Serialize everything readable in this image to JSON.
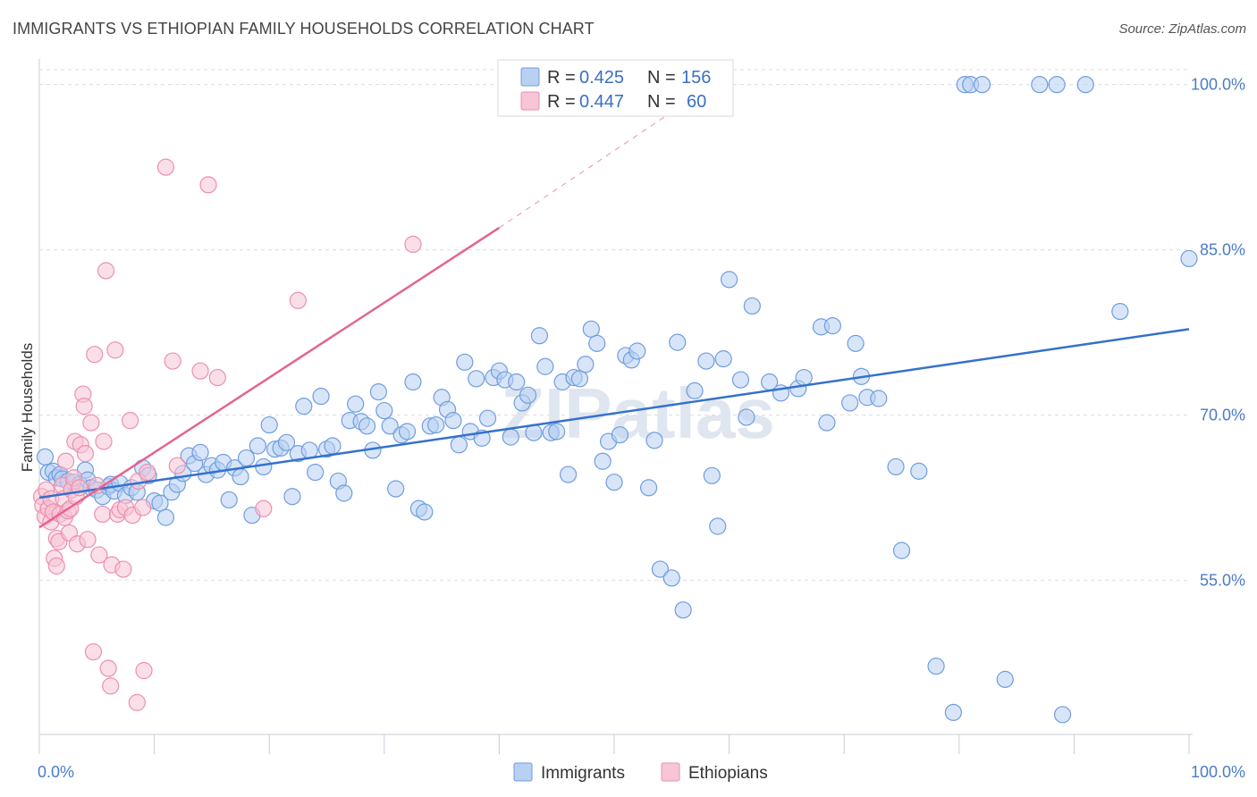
{
  "title": "IMMIGRANTS VS ETHIOPIAN FAMILY HOUSEHOLDS CORRELATION CHART",
  "source": "Source: ZipAtlas.com",
  "watermark": "ZIPatlas",
  "colors": {
    "immigrants_fill": "#b8d0f2",
    "immigrants_stroke": "#6f9ddf",
    "immigrants_line": "#3471cc",
    "ethiopians_fill": "#f7c5d5",
    "ethiopians_stroke": "#ec8fae",
    "ethiopians_line": "#e4648f",
    "grid": "#d9dde3",
    "tick_label": "#4a7cc9"
  },
  "legend": {
    "r_label": "R =",
    "n_label": "N =",
    "rows": [
      {
        "r": "0.425",
        "n": "156"
      },
      {
        "r": "0.447",
        "n": "60"
      }
    ]
  },
  "chart_data": {
    "type": "scatter",
    "title": "IMMIGRANTS VS ETHIOPIAN FAMILY HOUSEHOLDS CORRELATION CHART",
    "xlabel": "",
    "ylabel": "Family Households",
    "xlim": [
      0,
      100
    ],
    "ylim": [
      41,
      102
    ],
    "x_tick_labels": [
      "0.0%",
      "100.0%"
    ],
    "y_ticks": [
      55,
      70,
      85,
      100
    ],
    "y_tick_labels": [
      "55.0%",
      "70.0%",
      "85.0%",
      "100.0%"
    ],
    "grid": true,
    "legend_position": "top-center",
    "series": [
      {
        "name": "Immigrants",
        "trend": {
          "x": [
            0,
            100
          ],
          "y": [
            62.5,
            77.8
          ]
        },
        "points": [
          [
            0.5,
            66.2
          ],
          [
            0.8,
            64.8
          ],
          [
            1.2,
            64.9
          ],
          [
            1.5,
            64.3
          ],
          [
            1.8,
            64.6
          ],
          [
            2.0,
            64.2
          ],
          [
            2.5,
            64.0
          ],
          [
            3.0,
            63.9
          ],
          [
            3.5,
            63.7
          ],
          [
            4.0,
            65.0
          ],
          [
            4.2,
            64.1
          ],
          [
            4.5,
            63.4
          ],
          [
            5.0,
            63.2
          ],
          [
            5.5,
            62.6
          ],
          [
            6.0,
            63.5
          ],
          [
            6.2,
            63.7
          ],
          [
            6.5,
            63.1
          ],
          [
            7.0,
            63.8
          ],
          [
            7.5,
            62.7
          ],
          [
            8.0,
            63.4
          ],
          [
            8.5,
            63.0
          ],
          [
            9.0,
            65.2
          ],
          [
            9.5,
            64.5
          ],
          [
            10.0,
            62.2
          ],
          [
            10.5,
            62.0
          ],
          [
            11.0,
            60.7
          ],
          [
            11.5,
            63.0
          ],
          [
            12.0,
            63.7
          ],
          [
            12.5,
            64.7
          ],
          [
            13.0,
            66.3
          ],
          [
            13.5,
            65.6
          ],
          [
            14.0,
            66.6
          ],
          [
            14.5,
            64.6
          ],
          [
            15.0,
            65.4
          ],
          [
            15.5,
            65.0
          ],
          [
            16.0,
            65.7
          ],
          [
            16.5,
            62.3
          ],
          [
            17.0,
            65.2
          ],
          [
            17.5,
            64.4
          ],
          [
            18.0,
            66.1
          ],
          [
            18.5,
            60.9
          ],
          [
            19.0,
            67.2
          ],
          [
            19.5,
            65.3
          ],
          [
            20.0,
            69.1
          ],
          [
            20.5,
            66.9
          ],
          [
            21.0,
            67.0
          ],
          [
            21.5,
            67.5
          ],
          [
            22.0,
            62.6
          ],
          [
            22.5,
            66.5
          ],
          [
            23.0,
            70.8
          ],
          [
            23.5,
            66.8
          ],
          [
            24.0,
            64.8
          ],
          [
            24.5,
            71.7
          ],
          [
            25.0,
            66.9
          ],
          [
            25.5,
            67.2
          ],
          [
            26.0,
            64.0
          ],
          [
            26.5,
            62.9
          ],
          [
            27.0,
            69.5
          ],
          [
            27.5,
            71.0
          ],
          [
            28.0,
            69.4
          ],
          [
            28.5,
            69.0
          ],
          [
            29.0,
            66.8
          ],
          [
            29.5,
            72.1
          ],
          [
            30.0,
            70.4
          ],
          [
            30.5,
            69.0
          ],
          [
            31.0,
            63.3
          ],
          [
            31.5,
            68.2
          ],
          [
            32.0,
            68.5
          ],
          [
            32.5,
            73.0
          ],
          [
            33.0,
            61.5
          ],
          [
            33.5,
            61.2
          ],
          [
            34.0,
            69.0
          ],
          [
            34.5,
            69.1
          ],
          [
            35.0,
            71.6
          ],
          [
            35.5,
            70.5
          ],
          [
            36.0,
            69.5
          ],
          [
            36.5,
            67.3
          ],
          [
            37.0,
            74.8
          ],
          [
            37.5,
            68.5
          ],
          [
            38.0,
            73.3
          ],
          [
            38.5,
            67.9
          ],
          [
            39.0,
            69.7
          ],
          [
            39.5,
            73.4
          ],
          [
            40.0,
            74.0
          ],
          [
            40.5,
            73.2
          ],
          [
            41.0,
            68.0
          ],
          [
            41.5,
            73.0
          ],
          [
            42.0,
            71.1
          ],
          [
            42.5,
            71.8
          ],
          [
            43.0,
            68.4
          ],
          [
            43.5,
            77.2
          ],
          [
            44.0,
            74.4
          ],
          [
            44.5,
            68.4
          ],
          [
            45.0,
            68.5
          ],
          [
            45.5,
            73.0
          ],
          [
            46.0,
            64.6
          ],
          [
            46.5,
            73.4
          ],
          [
            47.0,
            73.3
          ],
          [
            47.5,
            74.6
          ],
          [
            48.0,
            77.8
          ],
          [
            48.5,
            76.5
          ],
          [
            49.0,
            65.8
          ],
          [
            49.5,
            67.6
          ],
          [
            50.0,
            63.9
          ],
          [
            50.5,
            68.2
          ],
          [
            51.0,
            75.4
          ],
          [
            51.5,
            75.0
          ],
          [
            52.0,
            75.8
          ],
          [
            53.0,
            63.4
          ],
          [
            53.5,
            67.7
          ],
          [
            54.0,
            56.0
          ],
          [
            55.0,
            55.2
          ],
          [
            55.5,
            76.6
          ],
          [
            56.0,
            52.3
          ],
          [
            57.0,
            72.2
          ],
          [
            58.0,
            74.9
          ],
          [
            58.5,
            64.5
          ],
          [
            59.0,
            59.9
          ],
          [
            59.5,
            75.1
          ],
          [
            60.0,
            82.3
          ],
          [
            61.0,
            73.2
          ],
          [
            61.5,
            69.8
          ],
          [
            62.0,
            79.9
          ],
          [
            63.5,
            73.0
          ],
          [
            64.5,
            72.0
          ],
          [
            66.0,
            72.4
          ],
          [
            66.5,
            73.4
          ],
          [
            68.0,
            78.0
          ],
          [
            68.5,
            69.3
          ],
          [
            69.0,
            78.1
          ],
          [
            70.5,
            71.1
          ],
          [
            71.0,
            76.5
          ],
          [
            71.5,
            73.5
          ],
          [
            72.0,
            71.6
          ],
          [
            73.0,
            71.5
          ],
          [
            74.5,
            65.3
          ],
          [
            75.0,
            57.7
          ],
          [
            76.5,
            64.9
          ],
          [
            78.0,
            47.2
          ],
          [
            79.5,
            43.0
          ],
          [
            80.5,
            100.0
          ],
          [
            81.0,
            100.0
          ],
          [
            82.0,
            100.0
          ],
          [
            84.0,
            46.0
          ],
          [
            87.0,
            100.0
          ],
          [
            88.5,
            100.0
          ],
          [
            89.0,
            42.8
          ],
          [
            91.0,
            100.0
          ],
          [
            94.0,
            79.4
          ],
          [
            100.0,
            84.2
          ]
        ]
      },
      {
        "name": "Ethiopians",
        "trend": {
          "x": [
            0,
            40
          ],
          "y": [
            59.8,
            87.0
          ]
        },
        "trend_dashed": {
          "x": [
            40,
            55
          ],
          "y": [
            87.0,
            97.5
          ]
        },
        "points": [
          [
            0.2,
            62.6
          ],
          [
            0.3,
            61.8
          ],
          [
            0.5,
            60.8
          ],
          [
            0.6,
            63.2
          ],
          [
            0.8,
            61.5
          ],
          [
            1.0,
            62.4
          ],
          [
            1.0,
            60.3
          ],
          [
            1.2,
            61.2
          ],
          [
            1.3,
            57.0
          ],
          [
            1.5,
            58.8
          ],
          [
            1.5,
            56.3
          ],
          [
            1.7,
            58.5
          ],
          [
            1.8,
            61.0
          ],
          [
            2.0,
            63.6
          ],
          [
            2.1,
            62.4
          ],
          [
            2.2,
            60.7
          ],
          [
            2.3,
            65.8
          ],
          [
            2.5,
            61.3
          ],
          [
            2.6,
            59.3
          ],
          [
            2.7,
            61.5
          ],
          [
            2.8,
            63.2
          ],
          [
            3.0,
            64.3
          ],
          [
            3.1,
            67.6
          ],
          [
            3.2,
            62.6
          ],
          [
            3.3,
            58.3
          ],
          [
            3.5,
            63.4
          ],
          [
            3.6,
            67.3
          ],
          [
            3.8,
            71.9
          ],
          [
            3.9,
            70.8
          ],
          [
            4.0,
            66.5
          ],
          [
            4.2,
            58.7
          ],
          [
            4.5,
            69.3
          ],
          [
            4.7,
            48.5
          ],
          [
            4.8,
            75.5
          ],
          [
            5.0,
            63.6
          ],
          [
            5.2,
            57.3
          ],
          [
            5.5,
            61.0
          ],
          [
            5.6,
            67.6
          ],
          [
            5.8,
            83.1
          ],
          [
            6.0,
            47.0
          ],
          [
            6.2,
            45.4
          ],
          [
            6.3,
            56.4
          ],
          [
            6.6,
            75.9
          ],
          [
            6.8,
            61.0
          ],
          [
            7.0,
            61.4
          ],
          [
            7.3,
            56.0
          ],
          [
            7.5,
            61.6
          ],
          [
            7.9,
            69.5
          ],
          [
            8.1,
            60.9
          ],
          [
            8.5,
            43.9
          ],
          [
            8.6,
            64.0
          ],
          [
            9.0,
            61.6
          ],
          [
            9.1,
            46.8
          ],
          [
            9.4,
            64.8
          ],
          [
            11.0,
            92.5
          ],
          [
            11.6,
            74.9
          ],
          [
            12.0,
            65.4
          ],
          [
            14.0,
            74.0
          ],
          [
            14.7,
            90.9
          ],
          [
            15.5,
            73.4
          ],
          [
            19.5,
            61.5
          ],
          [
            22.5,
            80.4
          ],
          [
            32.5,
            85.5
          ]
        ]
      }
    ]
  },
  "bottom_legend": {
    "items": [
      "Immigrants",
      "Ethiopians"
    ]
  }
}
